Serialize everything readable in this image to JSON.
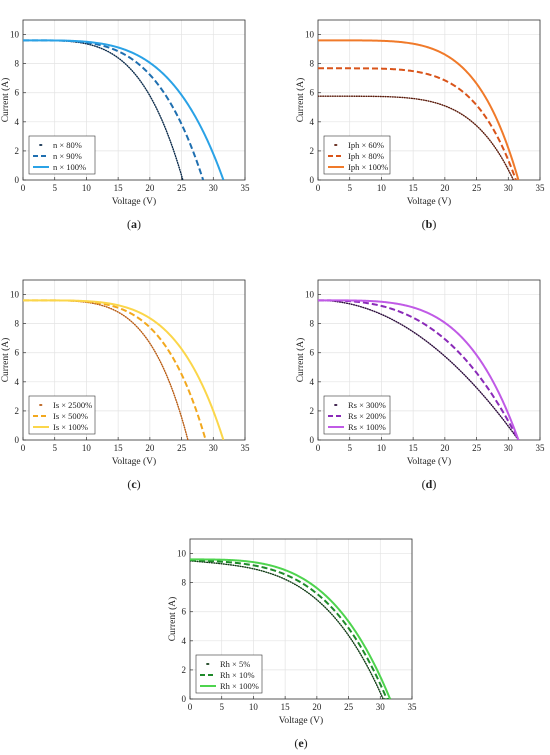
{
  "chart_data": [
    {
      "type": "line",
      "panel_label": "(a)",
      "panel_letter": "a",
      "xlabel": "Voltage (V)",
      "ylabel": "Current (A)",
      "xlim": [
        0,
        35
      ],
      "ylim": [
        0,
        11
      ],
      "xticks": [
        0,
        5,
        10,
        15,
        20,
        25,
        30,
        35
      ],
      "yticks": [
        0,
        2,
        4,
        6,
        8,
        10
      ],
      "grid": true,
      "legend_position": "bottom-left",
      "series": [
        {
          "name": "n × 80%",
          "style": "dotted",
          "color": "#0a2a4a",
          "isc": 9.6,
          "voc": 25.2,
          "ny": 4.0,
          "slope": 0.0
        },
        {
          "name": "n × 90%",
          "style": "dashed",
          "color": "#1f6fb0",
          "isc": 9.6,
          "voc": 28.4,
          "ny": 4.0,
          "slope": 0.0
        },
        {
          "name": "n × 100%",
          "style": "solid",
          "color": "#2aa2e6",
          "isc": 9.6,
          "voc": 31.6,
          "ny": 4.0,
          "slope": 0.0
        }
      ]
    },
    {
      "type": "line",
      "panel_label": "(b)",
      "panel_letter": "b",
      "xlabel": "Voltage (V)",
      "ylabel": "Current (A)",
      "xlim": [
        0,
        35
      ],
      "ylim": [
        0,
        11
      ],
      "xticks": [
        0,
        5,
        10,
        15,
        20,
        25,
        30,
        35
      ],
      "yticks": [
        0,
        2,
        4,
        6,
        8,
        10
      ],
      "grid": true,
      "legend_position": "bottom-left",
      "series": [
        {
          "name": "Iph × 60%",
          "style": "dotted",
          "color": "#5a1a0a",
          "isc": 5.76,
          "voc": 30.8,
          "ny": 5.0,
          "slope": 0.0
        },
        {
          "name": "Iph × 80%",
          "style": "dashed",
          "color": "#d9541a",
          "isc": 7.68,
          "voc": 31.2,
          "ny": 5.0,
          "slope": 0.0
        },
        {
          "name": "Iph × 100%",
          "style": "solid",
          "color": "#f07a2a",
          "isc": 9.6,
          "voc": 31.6,
          "ny": 5.0,
          "slope": 0.0
        }
      ]
    },
    {
      "type": "line",
      "panel_label": "(c)",
      "panel_letter": "c",
      "xlabel": "Voltage (V)",
      "ylabel": "Current (A)",
      "xlim": [
        0,
        35
      ],
      "ylim": [
        0,
        11
      ],
      "xticks": [
        0,
        5,
        10,
        15,
        20,
        25,
        30,
        35
      ],
      "yticks": [
        0,
        2,
        4,
        6,
        8,
        10
      ],
      "grid": true,
      "legend_position": "bottom-left",
      "series": [
        {
          "name": "Is × 2500%",
          "style": "dotted",
          "color": "#b85a10",
          "isc": 9.6,
          "voc": 26.0,
          "ny": 4.5,
          "slope": 0.0
        },
        {
          "name": "Is × 500%",
          "style": "dashed",
          "color": "#f2a81e",
          "isc": 9.6,
          "voc": 28.8,
          "ny": 4.5,
          "slope": 0.0
        },
        {
          "name": "Is × 100%",
          "style": "solid",
          "color": "#fbd64a",
          "isc": 9.6,
          "voc": 31.6,
          "ny": 4.5,
          "slope": 0.0
        }
      ]
    },
    {
      "type": "line",
      "panel_label": "(d)",
      "panel_letter": "d",
      "xlabel": "Voltage (V)",
      "ylabel": "Current (A)",
      "xlim": [
        0,
        35
      ],
      "ylim": [
        0,
        11
      ],
      "xticks": [
        0,
        5,
        10,
        15,
        20,
        25,
        30,
        35
      ],
      "yticks": [
        0,
        2,
        4,
        6,
        8,
        10
      ],
      "grid": true,
      "legend_position": "bottom-left",
      "series": [
        {
          "name": "Rs × 300%",
          "style": "dotted",
          "color": "#2a0a3a",
          "isc": 9.6,
          "voc": 31.6,
          "ny": 2.0,
          "slope": 0.0
        },
        {
          "name": "Rs × 200%",
          "style": "dashed",
          "color": "#8a2ab8",
          "isc": 9.6,
          "voc": 31.6,
          "ny": 2.8,
          "slope": 0.0
        },
        {
          "name": "Rs × 100%",
          "style": "solid",
          "color": "#c05ae6",
          "isc": 9.6,
          "voc": 31.6,
          "ny": 4.0,
          "slope": 0.0
        }
      ]
    },
    {
      "type": "line",
      "panel_label": "(e)",
      "panel_letter": "e",
      "xlabel": "Voltage (V)",
      "ylabel": "Current (A)",
      "xlim": [
        0,
        35
      ],
      "ylim": [
        0,
        11
      ],
      "xticks": [
        0,
        5,
        10,
        15,
        20,
        25,
        30,
        35
      ],
      "yticks": [
        0,
        2,
        4,
        6,
        8,
        10
      ],
      "grid": true,
      "legend_position": "bottom-left",
      "series": [
        {
          "name": "Rh × 5%",
          "style": "dotted",
          "color": "#0f3a14",
          "isc": 9.5,
          "voc": 31.6,
          "ny": 3.5,
          "slope": 0.038
        },
        {
          "name": "Rh × 10%",
          "style": "dashed",
          "color": "#1f8a2a",
          "isc": 9.55,
          "voc": 31.6,
          "ny": 3.5,
          "slope": 0.019
        },
        {
          "name": "Rh × 100%",
          "style": "solid",
          "color": "#4ed44e",
          "isc": 9.6,
          "voc": 31.6,
          "ny": 3.5,
          "slope": 0.0019
        }
      ]
    }
  ]
}
